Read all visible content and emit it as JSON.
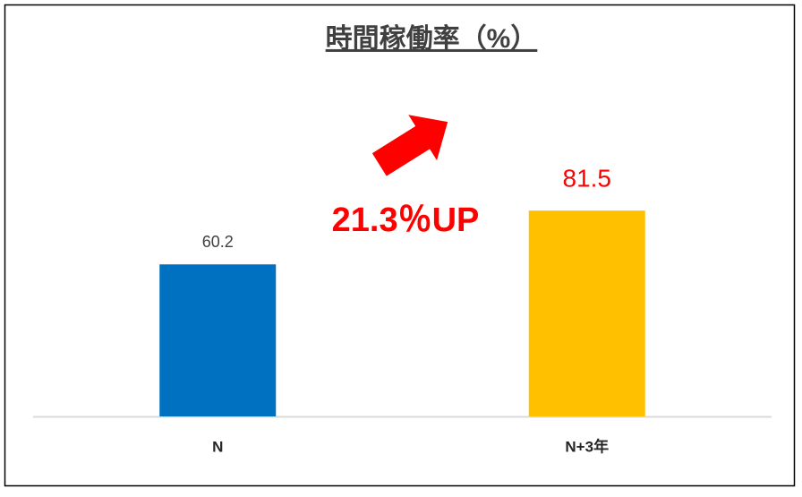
{
  "chart_data": {
    "type": "bar",
    "title": "時間稼働率（%）",
    "categories": [
      "N",
      "N+3年"
    ],
    "values": [
      60.2,
      81.5
    ],
    "colors": [
      "#0070c0",
      "#ffc000"
    ],
    "label_colors": [
      "#404040",
      "#ff0000"
    ],
    "ylim": [
      0,
      100
    ],
    "annotation": "21.3％UP"
  }
}
